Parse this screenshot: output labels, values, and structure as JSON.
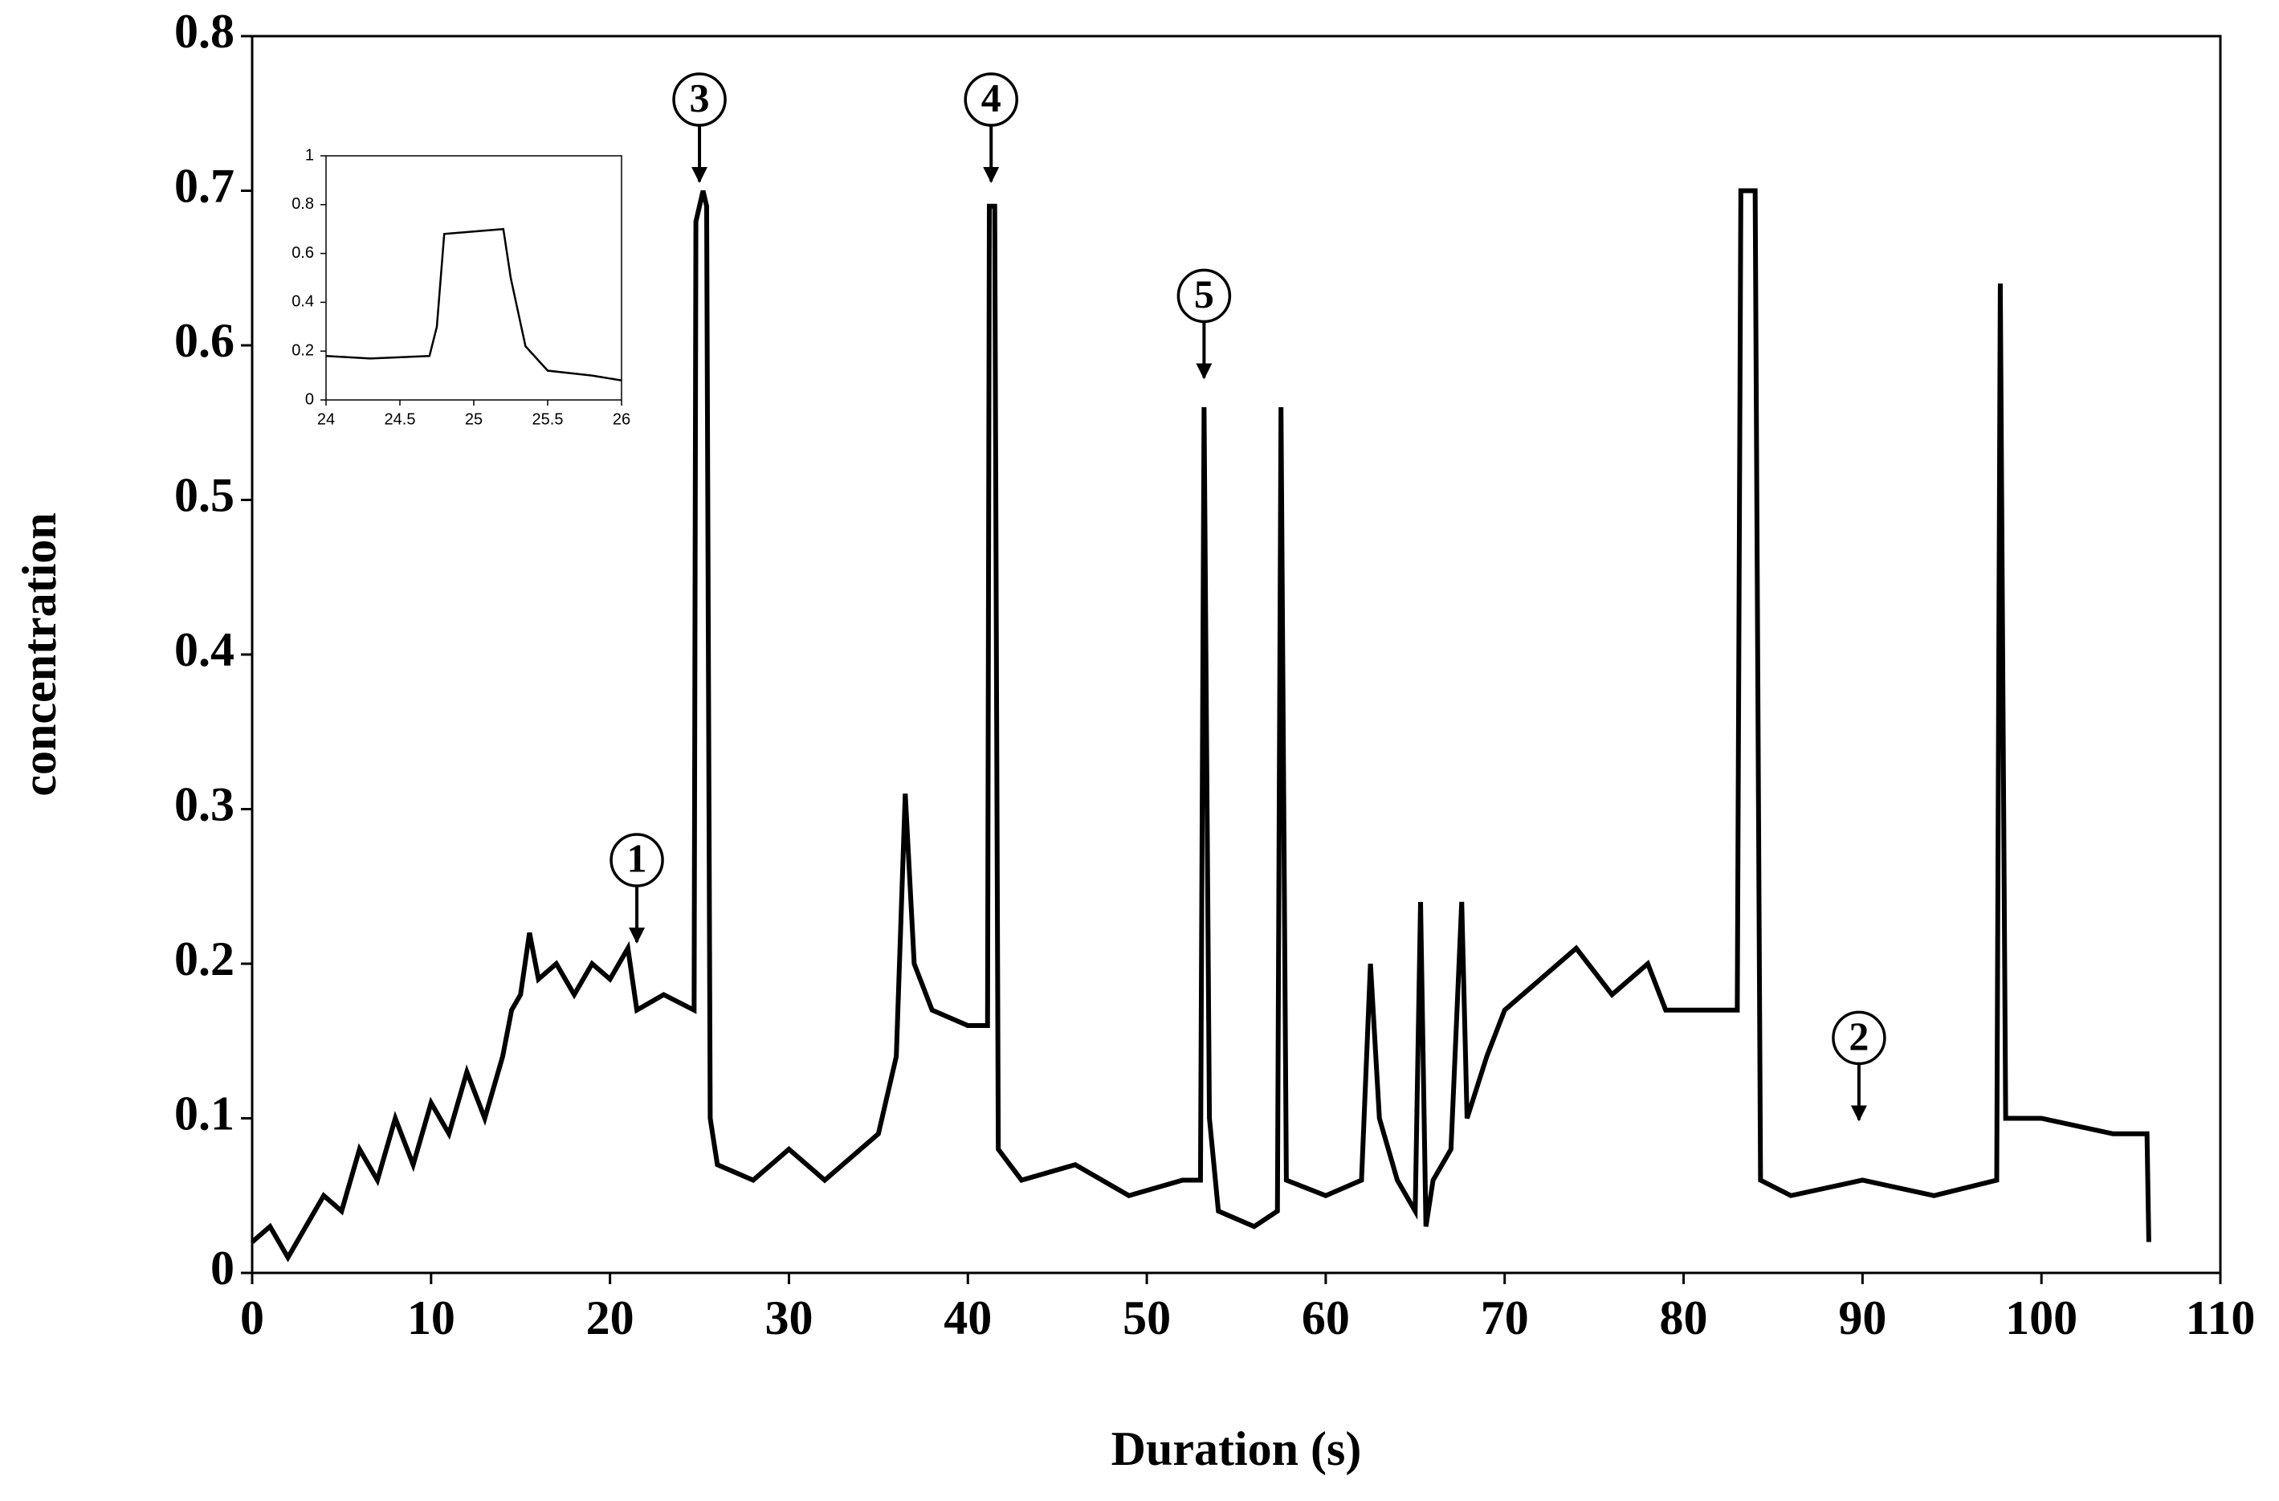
{
  "chart_data": [
    {
      "type": "line",
      "xlabel": "Duration (s)",
      "ylabel": "concentration",
      "xlim": [
        0,
        110
      ],
      "xticks": [
        0,
        10,
        20,
        30,
        40,
        50,
        60,
        70,
        80,
        90,
        100,
        110
      ],
      "ylim": [
        0,
        0.8
      ],
      "yticks": [
        0,
        0.1,
        0.2,
        0.3,
        0.4,
        0.5,
        0.6,
        0.7,
        0.8
      ],
      "grid": false,
      "color": "#000000",
      "x": [
        0,
        1,
        2,
        3,
        4,
        5,
        6,
        7,
        8,
        9,
        10,
        11,
        12,
        13,
        14,
        14.5,
        15,
        15.5,
        16,
        17,
        18,
        19,
        20,
        21,
        21.5,
        23,
        24.7,
        24.8,
        25.2,
        25.4,
        25.6,
        26,
        28,
        30,
        32,
        34,
        35,
        36,
        36.5,
        37,
        38,
        40,
        41.1,
        41.2,
        41.5,
        41.7,
        43,
        46,
        49,
        52,
        53,
        53.2,
        53.5,
        54,
        56,
        57.3,
        57.5,
        57.8,
        60,
        62,
        62.5,
        63,
        64,
        65,
        65.3,
        65.6,
        66,
        67,
        67.6,
        67.9,
        69,
        70,
        72,
        74,
        76,
        78,
        79,
        82,
        83,
        83.2,
        84,
        84.3,
        86,
        90,
        94,
        97.5,
        97.7,
        98,
        100,
        104,
        105.9,
        106
      ],
      "values": [
        0.02,
        0.03,
        0.01,
        0.03,
        0.05,
        0.04,
        0.08,
        0.06,
        0.1,
        0.07,
        0.11,
        0.09,
        0.13,
        0.1,
        0.14,
        0.17,
        0.18,
        0.22,
        0.19,
        0.2,
        0.18,
        0.2,
        0.19,
        0.21,
        0.17,
        0.18,
        0.17,
        0.68,
        0.7,
        0.69,
        0.1,
        0.07,
        0.06,
        0.08,
        0.06,
        0.08,
        0.09,
        0.14,
        0.31,
        0.2,
        0.17,
        0.16,
        0.16,
        0.69,
        0.69,
        0.08,
        0.06,
        0.07,
        0.05,
        0.06,
        0.06,
        0.56,
        0.1,
        0.04,
        0.03,
        0.04,
        0.56,
        0.06,
        0.05,
        0.06,
        0.2,
        0.1,
        0.06,
        0.04,
        0.24,
        0.03,
        0.06,
        0.08,
        0.24,
        0.1,
        0.14,
        0.17,
        0.19,
        0.21,
        0.18,
        0.2,
        0.17,
        0.17,
        0.17,
        0.7,
        0.7,
        0.06,
        0.05,
        0.06,
        0.05,
        0.06,
        0.64,
        0.1,
        0.1,
        0.09,
        0.09,
        0.02
      ],
      "annotations": [
        {
          "text": "1",
          "x": 21.5,
          "y": 0.214
        },
        {
          "text": "2",
          "x": 89.8,
          "y": 0.099
        },
        {
          "text": "3",
          "x": 25.0,
          "y": 0.706
        },
        {
          "text": "4",
          "x": 41.3,
          "y": 0.706
        },
        {
          "text": "5",
          "x": 53.2,
          "y": 0.579
        }
      ]
    },
    {
      "type": "line",
      "xlim": [
        24,
        26
      ],
      "xticks": [
        24,
        24.5,
        25,
        25.5,
        26
      ],
      "ylim": [
        0,
        1
      ],
      "yticks": [
        0,
        0.2,
        0.4,
        0.6,
        0.8,
        1
      ],
      "grid": false,
      "color": "#000000",
      "x": [
        24,
        24.3,
        24.7,
        24.75,
        24.8,
        25.0,
        25.2,
        25.25,
        25.35,
        25.5,
        25.8,
        26
      ],
      "values": [
        0.18,
        0.17,
        0.18,
        0.3,
        0.68,
        0.69,
        0.7,
        0.5,
        0.22,
        0.12,
        0.1,
        0.08
      ]
    }
  ]
}
